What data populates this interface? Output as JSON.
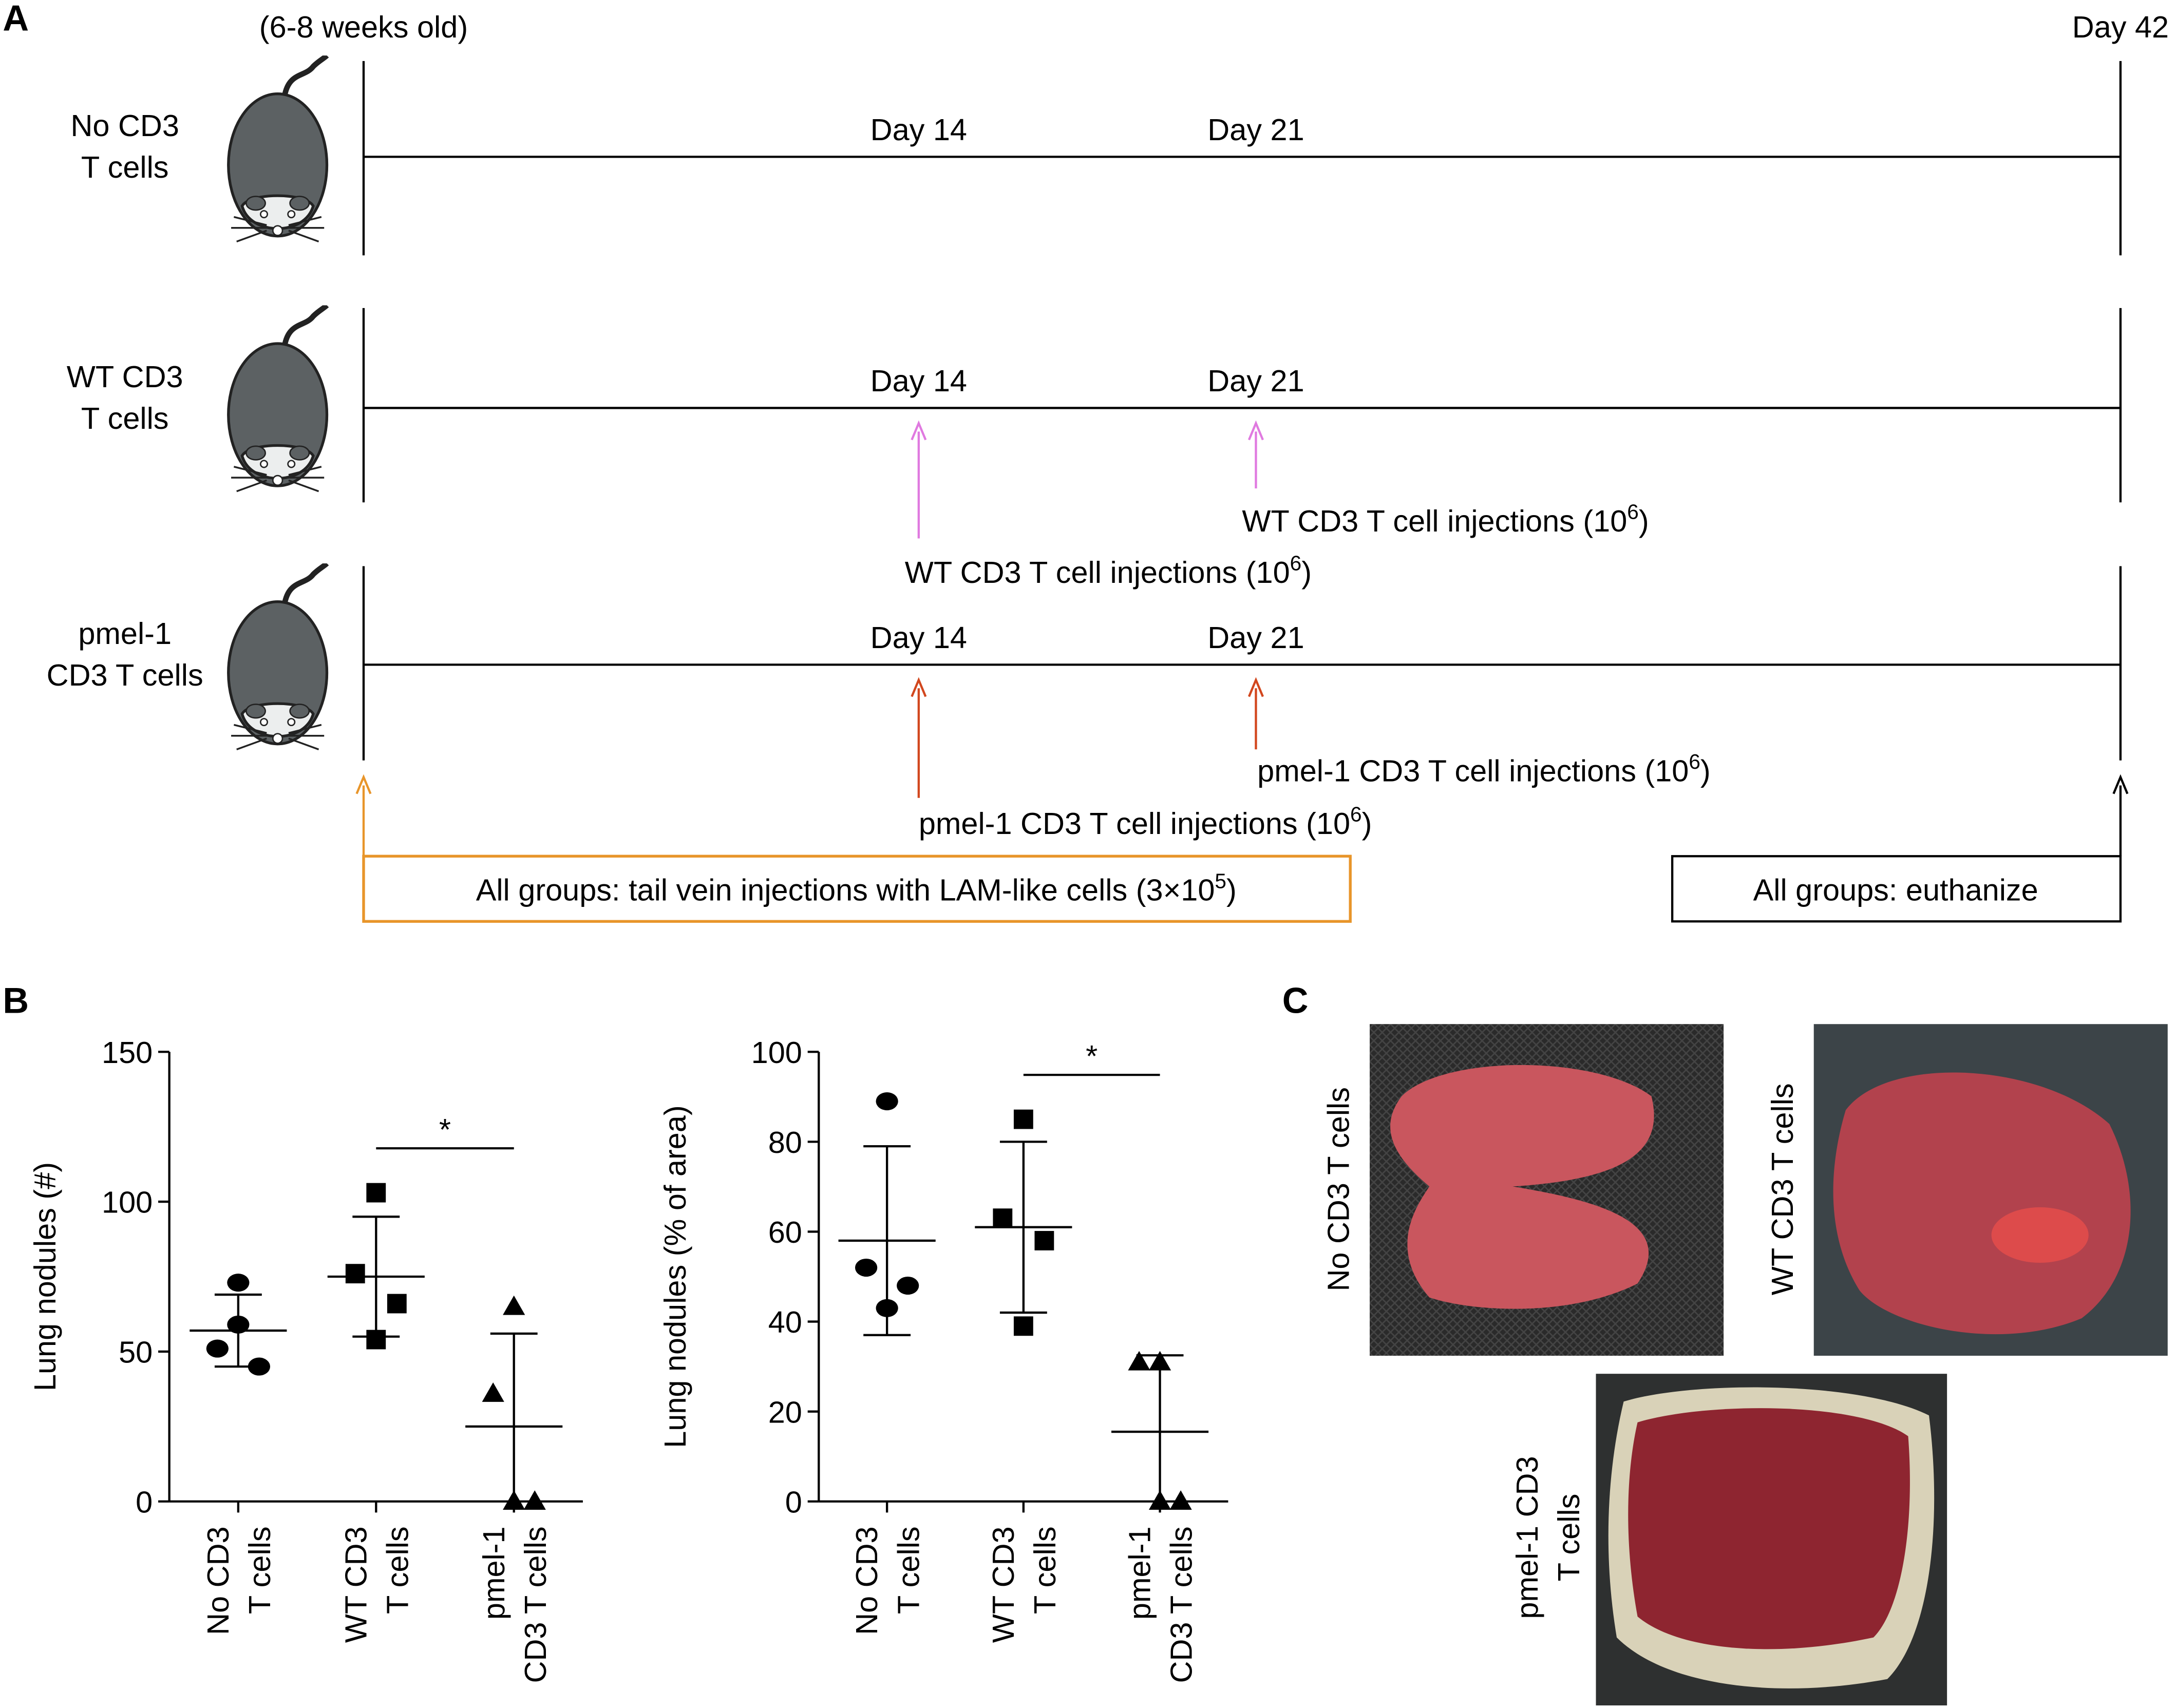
{
  "panel_labels": {
    "a": "A",
    "b": "B",
    "c": "C"
  },
  "timeline": {
    "start_note": "(6-8 weeks old)",
    "end_day": "Day 42",
    "rows": [
      {
        "label": [
          "No CD3",
          "T cells"
        ],
        "days": [
          "Day 14",
          "Day 21"
        ]
      },
      {
        "label": [
          "WT CD3",
          "T cells"
        ],
        "days": [
          "Day 14",
          "Day 21"
        ],
        "injections": [
          {
            "before": "WT CD3 T cell injections (10",
            "sup": "6",
            "after": ")"
          },
          {
            "before": "WT CD3 T cell injections (10",
            "sup": "6",
            "after": ")"
          }
        ]
      },
      {
        "label": [
          "pmel-1",
          "CD3 T cells"
        ],
        "days": [
          "Day 14",
          "Day 21"
        ],
        "injections": [
          {
            "before": "pmel-1 CD3 T cell injections (10",
            "sup": "6",
            "after": ")"
          },
          {
            "before": "pmel-1 CD3 T cell injections (10",
            "sup": "6",
            "after": ")"
          }
        ]
      }
    ],
    "start_box": {
      "before": "All groups: tail vein injections with LAM-like cells (3×10",
      "sup": "5",
      "after": ")"
    },
    "end_box": "All groups: euthanize"
  },
  "chart_data": [
    {
      "type": "dot",
      "y_label": "Lung nodules (#)",
      "categories": [
        [
          "No CD3",
          "T cells"
        ],
        [
          "WT CD3",
          "T cells"
        ],
        [
          "pmel-1",
          "CD3 T cells"
        ]
      ],
      "markers": [
        "circle",
        "square",
        "triangle"
      ],
      "points": [
        [
          73,
          51,
          45,
          59
        ],
        [
          103,
          76,
          66,
          54
        ],
        [
          65,
          36,
          0,
          0
        ]
      ],
      "means": [
        57,
        75,
        25
      ],
      "sd": [
        12,
        20,
        31
      ],
      "ylim": [
        0,
        150
      ],
      "yticks": [
        0,
        50,
        100,
        150
      ],
      "significance": [
        {
          "between": [
            1,
            2
          ],
          "label": "*"
        }
      ]
    },
    {
      "type": "dot",
      "y_label": "Lung nodules (% of area)",
      "categories": [
        [
          "No CD3",
          "T cells"
        ],
        [
          "WT CD3",
          "T cells"
        ],
        [
          "pmel-1",
          "CD3 T cells"
        ]
      ],
      "markers": [
        "circle",
        "square",
        "triangle"
      ],
      "points": [
        [
          89,
          52,
          48,
          43
        ],
        [
          85,
          63,
          58,
          39
        ],
        [
          31,
          31,
          0,
          0
        ]
      ],
      "means": [
        58,
        61,
        15.5
      ],
      "sd": [
        21,
        19,
        17
      ],
      "ylim": [
        0,
        100
      ],
      "yticks": [
        0,
        20,
        40,
        60,
        80,
        100
      ],
      "significance": [
        {
          "between": [
            1,
            2
          ],
          "label": "*"
        }
      ]
    }
  ],
  "photos": [
    {
      "label": [
        "No CD3 T cells"
      ]
    },
    {
      "label": [
        "WT CD3 T cells"
      ]
    },
    {
      "label": [
        "pmel-1 CD3",
        "T cells"
      ]
    }
  ]
}
